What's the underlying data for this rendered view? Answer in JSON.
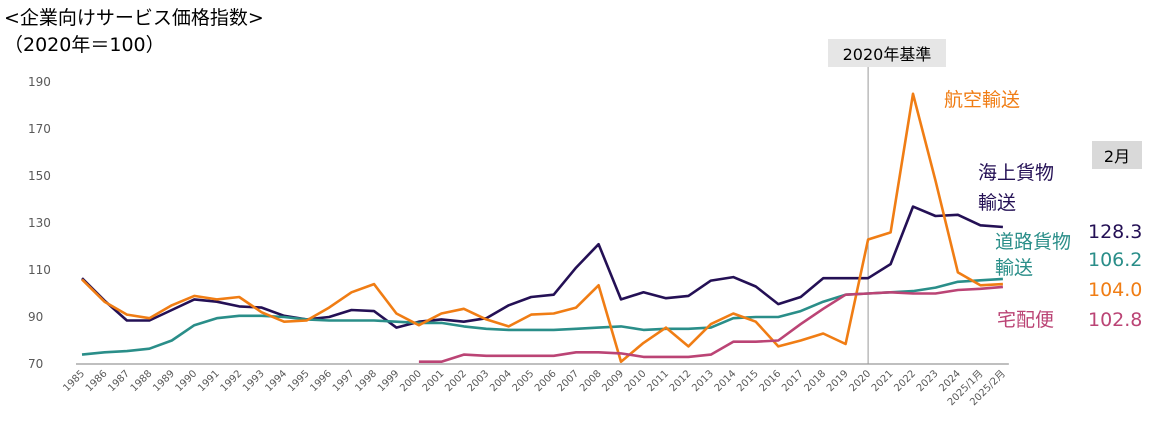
{
  "chart_data": {
    "type": "line",
    "title": "<企業向けサービス価格指数>",
    "subtitle": "（2020年＝100）",
    "base_label": "2020年基準",
    "month_label": "2月",
    "x": [
      "1985",
      "1986",
      "1987",
      "1988",
      "1989",
      "1990",
      "1991",
      "1992",
      "1993",
      "1994",
      "1995",
      "1996",
      "1997",
      "1998",
      "1999",
      "2000",
      "2001",
      "2002",
      "2003",
      "2004",
      "2005",
      "2006",
      "2007",
      "2008",
      "2009",
      "2010",
      "2011",
      "2012",
      "2013",
      "2014",
      "2015",
      "2016",
      "2017",
      "2018",
      "2019",
      "2020",
      "2021",
      "2022",
      "2023",
      "2024",
      "2025/1月",
      "2025/2月"
    ],
    "y_ticks": [
      190,
      170,
      150,
      130,
      110,
      90,
      70
    ],
    "ylim": [
      70,
      195
    ],
    "colors": {
      "air": "#f07d14",
      "sea": "#241055",
      "road": "#2a8e89",
      "parcel": "#bb4475",
      "base_line": "#999999",
      "axis": "#7f7f7f",
      "tick_text": "#595959"
    },
    "series": [
      {
        "key": "sea",
        "label_lines": [
          "海上貨物",
          "輸送"
        ],
        "end_value": "128.3",
        "values": [
          106.5,
          97,
          88.5,
          88.5,
          93,
          97.5,
          96.5,
          94.5,
          94,
          90.5,
          89,
          90,
          93,
          92.5,
          85.5,
          88,
          89,
          88,
          89.5,
          95,
          98.5,
          99.5,
          111,
          121,
          97.5,
          100.5,
          98,
          99,
          105.5,
          107,
          103,
          95.5,
          98.5,
          106.5,
          106.5,
          106.5,
          112.5,
          137,
          133,
          133.5,
          129,
          128.3
        ]
      },
      {
        "key": "road",
        "label_lines": [
          "道路貨物",
          "輸送"
        ],
        "end_value": "106.2",
        "values": [
          74,
          75,
          75.5,
          76.5,
          80,
          86.5,
          89.5,
          90.5,
          90.5,
          90,
          89,
          88.5,
          88.5,
          88.5,
          88,
          87.5,
          87.5,
          86,
          85,
          84.5,
          84.5,
          84.5,
          85,
          85.5,
          86,
          84.5,
          85,
          85,
          85.5,
          89.5,
          90,
          90,
          92.5,
          96.5,
          99.5,
          100,
          100.5,
          101,
          102.5,
          105,
          105.6,
          106.2
        ]
      },
      {
        "key": "air",
        "label_lines": [
          "航空輸送"
        ],
        "end_value": "104.0",
        "values": [
          106,
          96.5,
          91,
          89.5,
          95,
          99,
          97.5,
          98.5,
          92,
          88,
          88.5,
          94,
          100.5,
          104,
          91.5,
          86.5,
          91.5,
          93.5,
          89,
          86,
          91,
          91.5,
          94,
          103.5,
          71,
          79,
          85.5,
          77.5,
          87,
          91.5,
          88,
          77.5,
          80,
          83,
          78.5,
          123,
          126,
          185,
          148,
          109,
          103.5,
          104.0
        ]
      },
      {
        "key": "parcel",
        "label_lines": [
          "宅配便"
        ],
        "end_value": "102.8",
        "values": [
          null,
          null,
          null,
          null,
          null,
          null,
          null,
          null,
          null,
          null,
          null,
          null,
          null,
          null,
          null,
          71,
          71,
          74,
          73.5,
          73.5,
          73.5,
          73.5,
          75,
          75,
          74.5,
          73,
          73,
          73,
          74,
          79.5,
          79.5,
          80,
          87,
          93.5,
          99.5,
          100,
          100.5,
          100,
          100,
          101.5,
          102,
          102.8
        ]
      }
    ]
  }
}
